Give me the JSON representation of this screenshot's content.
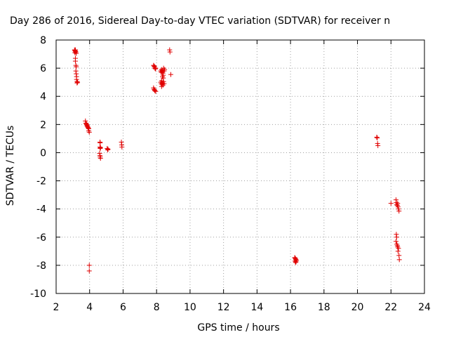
{
  "chart_data": {
    "type": "scatter",
    "title": "Day 286 of 2016, Sidereal Day-to-day VTEC variation (SDTVAR) for receiver n",
    "xlabel": "GPS time / hours",
    "ylabel": "SDTVAR / TECUs",
    "xlim": [
      2,
      24
    ],
    "ylim": [
      -10,
      8
    ],
    "xticks": [
      "2",
      "4",
      "6",
      "8",
      "10",
      "12",
      "14",
      "16",
      "18",
      "20",
      "22",
      "24"
    ],
    "yticks": [
      "8",
      "6",
      "4",
      "2",
      "0",
      "-2",
      "-4",
      "-6",
      "-8",
      "-10"
    ],
    "grid": true,
    "marker": "+",
    "color": "#e00000",
    "points": [
      [
        3.1,
        7.3
      ],
      [
        3.12,
        7.25
      ],
      [
        3.15,
        7.2
      ],
      [
        3.18,
        7.15
      ],
      [
        3.12,
        7.1
      ],
      [
        3.2,
        7.05
      ],
      [
        3.15,
        7.3
      ],
      [
        3.15,
        6.7
      ],
      [
        3.15,
        6.5
      ],
      [
        3.18,
        6.2
      ],
      [
        3.2,
        6.1
      ],
      [
        3.18,
        5.8
      ],
      [
        3.2,
        5.6
      ],
      [
        3.22,
        5.4
      ],
      [
        3.22,
        5.2
      ],
      [
        3.25,
        5.05
      ],
      [
        3.25,
        4.95
      ],
      [
        3.28,
        5.0
      ],
      [
        3.75,
        2.25
      ],
      [
        3.78,
        2.1
      ],
      [
        3.8,
        2.05
      ],
      [
        3.82,
        2.0
      ],
      [
        3.85,
        1.95
      ],
      [
        3.85,
        1.9
      ],
      [
        3.88,
        1.85
      ],
      [
        3.9,
        1.8
      ],
      [
        3.92,
        1.75
      ],
      [
        3.95,
        1.7
      ],
      [
        3.95,
        1.55
      ],
      [
        3.98,
        1.45
      ],
      [
        4.62,
        0.75
      ],
      [
        4.63,
        0.7
      ],
      [
        4.62,
        0.4
      ],
      [
        4.65,
        0.35
      ],
      [
        4.63,
        0.3
      ],
      [
        4.6,
        -0.05
      ],
      [
        4.62,
        -0.2
      ],
      [
        4.63,
        -0.3
      ],
      [
        4.65,
        -0.4
      ],
      [
        5.05,
        0.3
      ],
      [
        5.08,
        0.2
      ],
      [
        5.1,
        0.25
      ],
      [
        5.9,
        0.75
      ],
      [
        5.92,
        0.55
      ],
      [
        5.93,
        0.4
      ],
      [
        3.98,
        -8.0
      ],
      [
        3.98,
        -8.4
      ],
      [
        7.82,
        6.2
      ],
      [
        7.85,
        6.15
      ],
      [
        7.88,
        6.1
      ],
      [
        7.9,
        6.0
      ],
      [
        7.93,
        5.95
      ],
      [
        7.95,
        6.0
      ],
      [
        7.82,
        4.6
      ],
      [
        7.85,
        4.5
      ],
      [
        7.88,
        4.45
      ],
      [
        7.9,
        4.4
      ],
      [
        7.95,
        4.35
      ],
      [
        8.25,
        5.8
      ],
      [
        8.28,
        5.7
      ],
      [
        8.3,
        5.9
      ],
      [
        8.33,
        5.75
      ],
      [
        8.35,
        5.85
      ],
      [
        8.38,
        5.65
      ],
      [
        8.4,
        5.5
      ],
      [
        8.42,
        6.0
      ],
      [
        8.45,
        5.8
      ],
      [
        8.48,
        5.9
      ],
      [
        8.35,
        5.4
      ],
      [
        8.4,
        5.3
      ],
      [
        8.25,
        5.0
      ],
      [
        8.28,
        4.9
      ],
      [
        8.3,
        5.1
      ],
      [
        8.33,
        4.85
      ],
      [
        8.35,
        4.95
      ],
      [
        8.38,
        4.8
      ],
      [
        8.42,
        5.05
      ],
      [
        8.45,
        4.9
      ],
      [
        8.3,
        4.7
      ],
      [
        8.78,
        7.3
      ],
      [
        8.8,
        7.15
      ],
      [
        8.85,
        5.55
      ],
      [
        16.25,
        -7.45
      ],
      [
        16.28,
        -7.5
      ],
      [
        16.3,
        -7.55
      ],
      [
        16.32,
        -7.6
      ],
      [
        16.35,
        -7.65
      ],
      [
        16.27,
        -7.7
      ],
      [
        16.33,
        -7.75
      ],
      [
        16.3,
        -7.8
      ],
      [
        21.15,
        1.1
      ],
      [
        21.18,
        1.05
      ],
      [
        21.2,
        0.65
      ],
      [
        21.22,
        0.5
      ],
      [
        22.0,
        -3.6
      ],
      [
        22.3,
        -3.35
      ],
      [
        22.32,
        -3.55
      ],
      [
        22.35,
        -3.7
      ],
      [
        22.38,
        -3.75
      ],
      [
        22.4,
        -3.6
      ],
      [
        22.42,
        -3.85
      ],
      [
        22.45,
        -4.0
      ],
      [
        22.48,
        -4.15
      ],
      [
        22.32,
        -5.8
      ],
      [
        22.34,
        -6.0
      ],
      [
        22.3,
        -6.3
      ],
      [
        22.35,
        -6.5
      ],
      [
        22.38,
        -6.6
      ],
      [
        22.4,
        -6.7
      ],
      [
        22.45,
        -6.8
      ],
      [
        22.42,
        -7.0
      ],
      [
        22.48,
        -7.3
      ],
      [
        22.5,
        -7.6
      ]
    ]
  }
}
